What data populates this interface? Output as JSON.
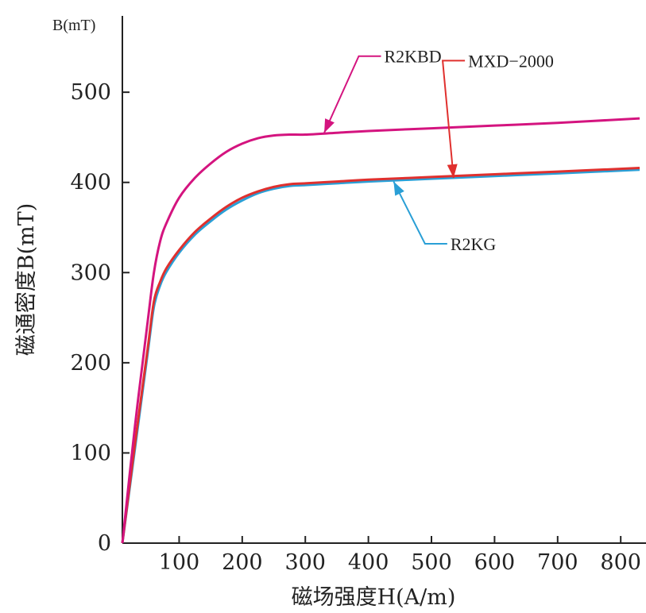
{
  "chart_data": {
    "type": "line",
    "title": "",
    "xlabel": "磁场强度H(A/m)",
    "ylabel": "磁通密度B(mT)",
    "y_unit_label": "B(mT)",
    "xlim": [
      10,
      830
    ],
    "ylim": [
      0,
      560
    ],
    "x_ticks": [
      100,
      200,
      300,
      400,
      500,
      600,
      700,
      800
    ],
    "y_ticks": [
      0,
      100,
      200,
      300,
      400,
      500
    ],
    "grid": false,
    "legend": "inline arrows",
    "series": [
      {
        "name": "R2KBD",
        "color": "#d4147f",
        "x": [
          10,
          30,
          50,
          60,
          70,
          80,
          100,
          125,
          150,
          175,
          200,
          225,
          250,
          275,
          300,
          350,
          400,
          500,
          600,
          700,
          830
        ],
        "y": [
          0,
          130,
          245,
          300,
          335,
          355,
          383,
          405,
          421,
          434,
          443,
          449,
          452,
          453,
          453,
          455,
          457,
          460,
          463,
          466,
          471
        ]
      },
      {
        "name": "MXD-2000",
        "color": "#e0302e",
        "x": [
          10,
          30,
          50,
          60,
          70,
          80,
          100,
          125,
          150,
          175,
          200,
          225,
          250,
          275,
          300,
          350,
          400,
          500,
          600,
          700,
          830
        ],
        "y": [
          0,
          110,
          215,
          268,
          290,
          305,
          325,
          345,
          360,
          373,
          383,
          390,
          395,
          398,
          399,
          401,
          403,
          406,
          409,
          412,
          416
        ]
      },
      {
        "name": "R2KG",
        "color": "#2a9fd6",
        "x": [
          10,
          30,
          50,
          60,
          70,
          80,
          100,
          125,
          150,
          175,
          200,
          225,
          250,
          275,
          300,
          350,
          400,
          500,
          600,
          700,
          830
        ],
        "y": [
          0,
          105,
          210,
          262,
          286,
          301,
          322,
          342,
          357,
          370,
          380,
          388,
          393,
          396,
          397,
          399,
          401,
          404,
          407,
          410,
          414
        ]
      }
    ],
    "annotations": [
      {
        "text": "R2KBD",
        "series": 0,
        "point_x": 330,
        "point_y": 455,
        "label_x": 420,
        "label_y": 540,
        "side": "right"
      },
      {
        "text": "MXD−2000",
        "series": 1,
        "point_x": 535,
        "point_y": 405,
        "label_x": 553,
        "label_y": 535,
        "side": "right"
      },
      {
        "text": "R2KG",
        "series": 2,
        "point_x": 440,
        "point_y": 401,
        "label_x": 525,
        "label_y": 332,
        "side": "right"
      }
    ]
  }
}
